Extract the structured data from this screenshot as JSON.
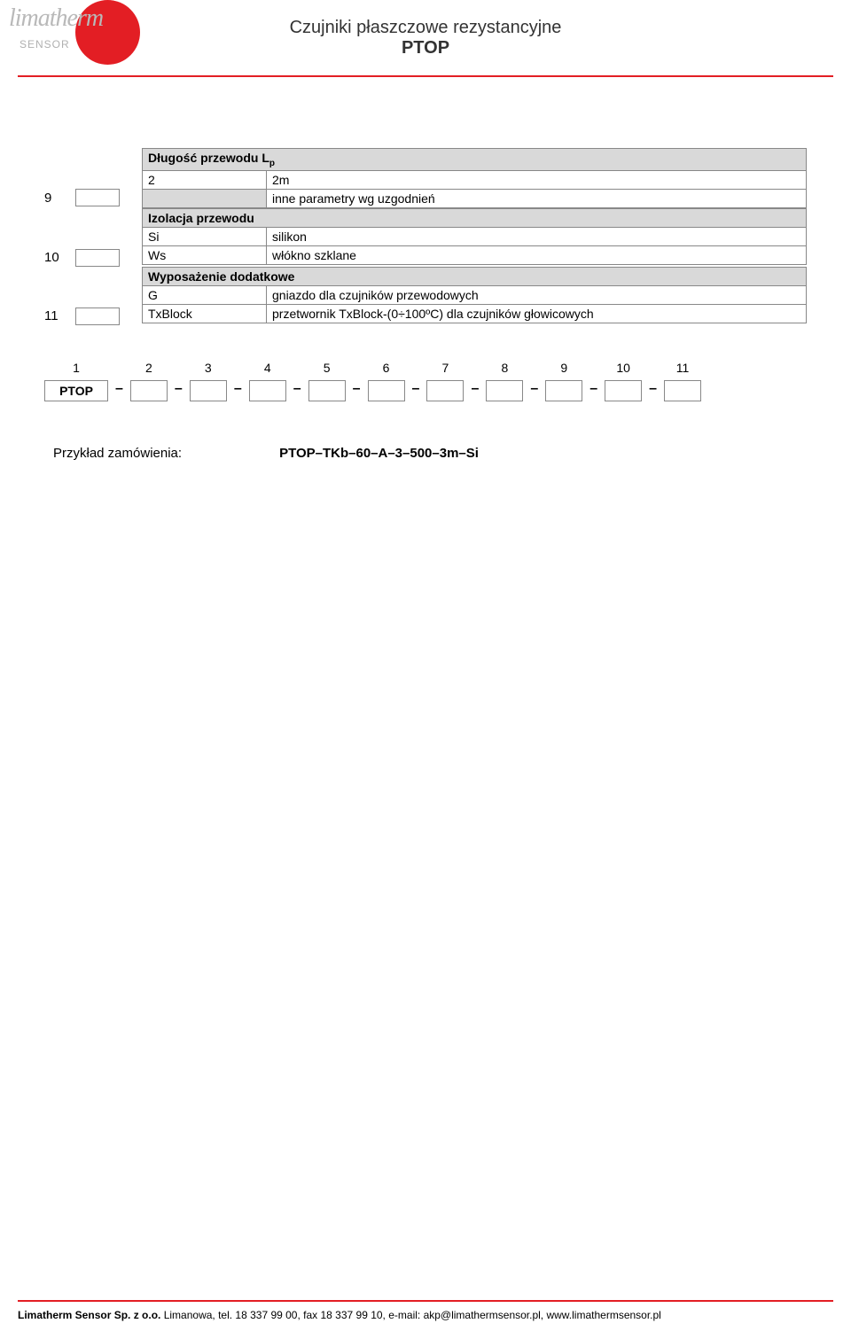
{
  "colors": {
    "brand_red": "#e31e24",
    "header_grey": "#d9d9d9",
    "border_grey": "#888888",
    "logo_grey": "#b9b9b9",
    "text": "#000000",
    "background": "#ffffff"
  },
  "logo": {
    "main": "limatherm",
    "sub": "SENSOR"
  },
  "title": {
    "line1": "Czujniki płaszczowe rezystancyjne",
    "line2": "PTOP"
  },
  "sections": [
    {
      "num": "9",
      "header": "Długość przewodu L",
      "header_sub": "p",
      "rows": [
        {
          "code": "2",
          "desc": "2m",
          "code_grey": false
        },
        {
          "code": "",
          "desc": "inne parametry wg uzgodnień",
          "code_grey": true
        }
      ]
    },
    {
      "num": "10",
      "header": "Izolacja przewodu",
      "rows": [
        {
          "code": "Si",
          "desc": "silikon",
          "code_grey": false
        },
        {
          "code": "Ws",
          "desc": "włókno szklane",
          "code_grey": false
        }
      ]
    },
    {
      "num": "11",
      "header": "Wyposażenie dodatkowe",
      "rows": [
        {
          "code": "G",
          "desc": "gniazdo dla czujników przewodowych",
          "code_grey": false
        },
        {
          "code": "TxBlock",
          "desc": "przetwornik TxBlock-(0÷100ºC) dla czujników głowicowych",
          "code_grey": false
        }
      ]
    }
  ],
  "order_code": {
    "dash": "–",
    "positions": [
      "1",
      "2",
      "3",
      "4",
      "5",
      "6",
      "7",
      "8",
      "9",
      "10",
      "11"
    ],
    "first_value": "PTOP"
  },
  "example": {
    "label": "Przykład zamówienia:",
    "value": "PTOP–TKb–60–A–3–500–3m–Si"
  },
  "footer": {
    "company_bold": "Limatherm Sensor Sp. z o.o.",
    "rest": "   Limanowa, tel. 18 337 99 00, fax 18 337 99 10, e-mail: akp@limathermsensor.pl, www.limathermsensor.pl"
  }
}
